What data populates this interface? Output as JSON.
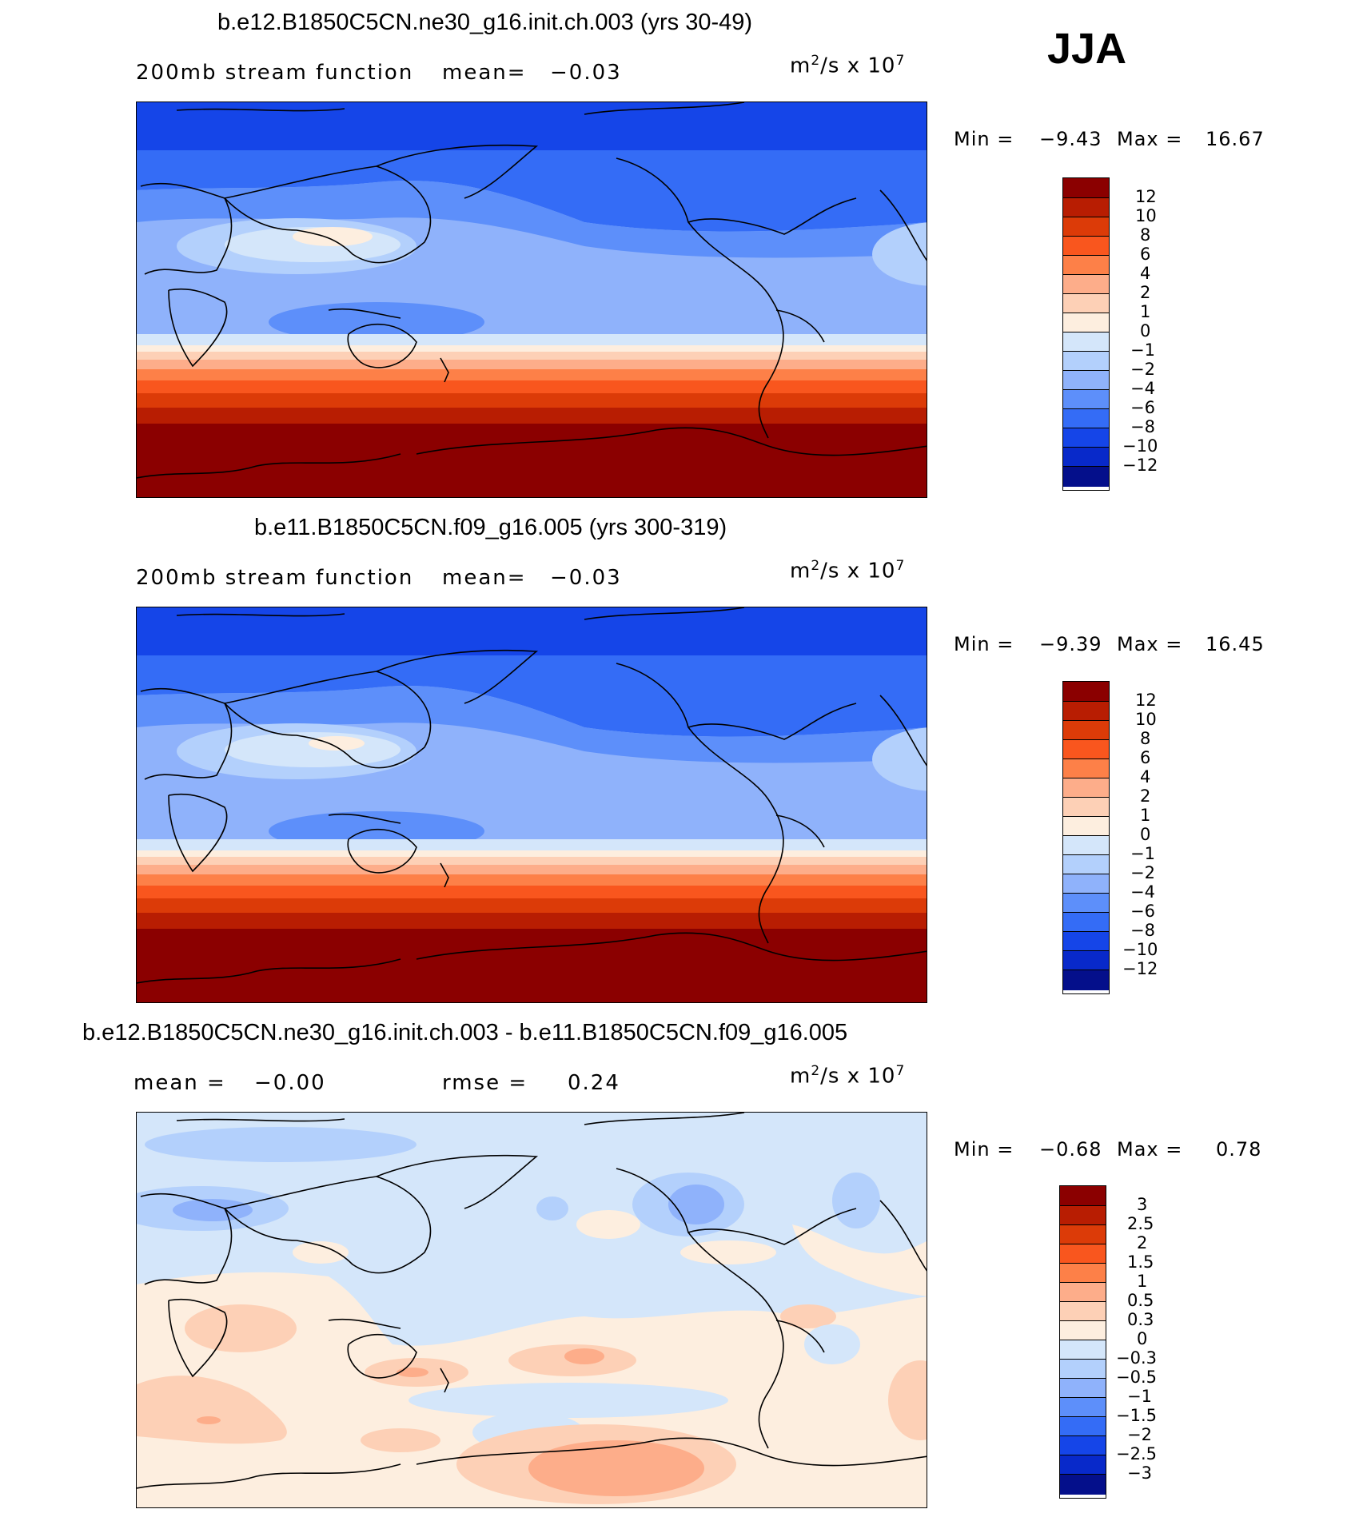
{
  "season": "JJA",
  "units_base": "m",
  "units_rest": "/s x 10",
  "units_sup2": "2",
  "units_sup7": "7",
  "panels": [
    {
      "title": "b.e12.B1850C5CN.ne30_g16.init.ch.003 (yrs 30-49)",
      "left_label": "200mb stream function",
      "mean_label": "mean=",
      "mean_value": "−0.03",
      "min_label": "Min =",
      "min_value": "−9.43",
      "max_label": "Max =",
      "max_value": "16.67"
    },
    {
      "title": "b.e11.B1850C5CN.f09_g16.005 (yrs 300-319)",
      "left_label": "200mb stream function",
      "mean_label": "mean=",
      "mean_value": "−0.03",
      "min_label": "Min =",
      "min_value": "−9.39",
      "max_label": "Max =",
      "max_value": "16.45"
    },
    {
      "title": "b.e12.B1850C5CN.ne30_g16.init.ch.003 - b.e11.B1850C5CN.f09_g16.005",
      "mean_label": "mean =",
      "mean_value": "−0.00",
      "rmse_label": "rmse =",
      "rmse_value": "0.24",
      "min_label": "Min =",
      "min_value": "−0.68",
      "max_label": "Max =",
      "max_value": "0.78"
    }
  ],
  "colorbar_colors": [
    "#8b0000",
    "#b81d02",
    "#dc3b08",
    "#f9561e",
    "#fd8048",
    "#fdad8a",
    "#fdd0b6",
    "#fdeedf",
    "#d4e6fa",
    "#b3d0fc",
    "#8fb2fb",
    "#5d8ffa",
    "#346cf6",
    "#1545e8",
    "#0829ca",
    "#040f8b"
  ],
  "colorbar_labels_main": [
    "12",
    "10",
    "8",
    "6",
    "4",
    "2",
    "1",
    "0",
    "−1",
    "−2",
    "−4",
    "−6",
    "−8",
    "−10",
    "−12"
  ],
  "colorbar_labels_diff": [
    "3",
    "2.5",
    "2",
    "1.5",
    "1",
    "0.5",
    "0.3",
    "0",
    "−0.3",
    "−0.5",
    "−1",
    "−1.5",
    "−2",
    "−2.5",
    "−3"
  ]
}
